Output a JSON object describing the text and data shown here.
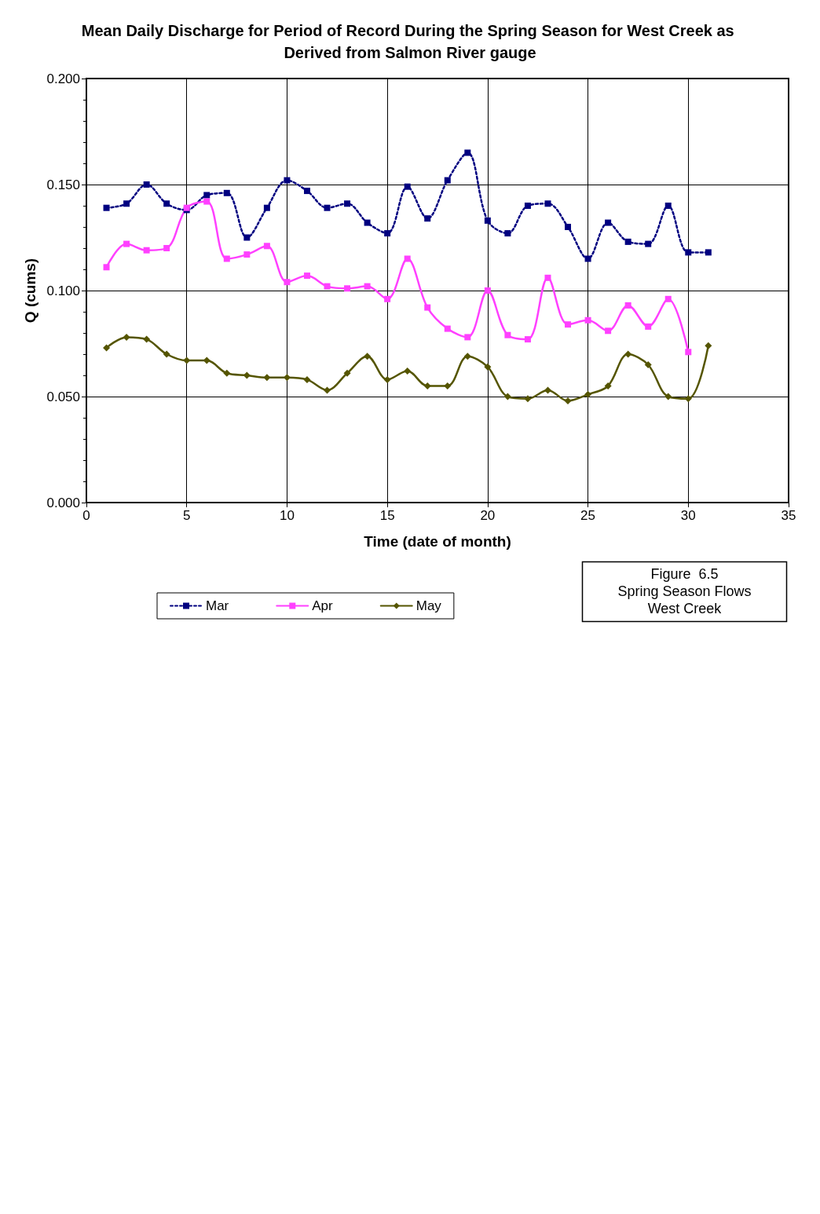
{
  "chart_data": {
    "type": "line",
    "title": "Mean Daily Discharge for Period of Record During the Spring Season for West Creek as Derived from Salmon River gauge",
    "xlabel": "Time (date of month)",
    "ylabel": "Q (cums)",
    "annotations": [
      "Figure  6.5",
      "Spring Season Flows",
      "West Creek"
    ],
    "xlim": [
      0,
      35
    ],
    "xticks": [
      0,
      5,
      10,
      15,
      20,
      25,
      30,
      35
    ],
    "ylim": [
      0,
      0.2
    ],
    "yticks": [
      {
        "value": 0,
        "label": "0.000"
      },
      {
        "value": 0.05,
        "label": "0.050"
      },
      {
        "value": 0.1,
        "label": "0.100"
      },
      {
        "value": 0.15,
        "label": "0.150"
      },
      {
        "value": 0.2,
        "label": "0.200"
      }
    ],
    "grid": true,
    "legend": "bottom",
    "series": [
      {
        "name": "Mar",
        "color": "#000080",
        "marker": "square",
        "line_style": "dotted",
        "x": [
          1,
          2,
          3,
          4,
          5,
          6,
          7,
          8,
          9,
          10,
          11,
          12,
          13,
          14,
          15,
          16,
          17,
          18,
          19,
          20,
          21,
          22,
          23,
          24,
          25,
          26,
          27,
          28,
          29,
          30,
          31
        ],
        "values": [
          0.139,
          0.141,
          0.15,
          0.141,
          0.138,
          0.145,
          0.146,
          0.125,
          0.139,
          0.152,
          0.147,
          0.139,
          0.141,
          0.132,
          0.127,
          0.149,
          0.134,
          0.152,
          0.165,
          0.133,
          0.127,
          0.14,
          0.141,
          0.13,
          0.115,
          0.132,
          0.123,
          0.122,
          0.14,
          0.118,
          0.118
        ]
      },
      {
        "name": "Apr",
        "color": "#ff40ff",
        "marker": "square",
        "line_style": "solid",
        "x": [
          1,
          2,
          3,
          4,
          5,
          6,
          7,
          8,
          9,
          10,
          11,
          12,
          13,
          14,
          15,
          16,
          17,
          18,
          19,
          20,
          21,
          22,
          23,
          24,
          25,
          26,
          27,
          28,
          29,
          30
        ],
        "values": [
          0.111,
          0.122,
          0.119,
          0.12,
          0.139,
          0.142,
          0.115,
          0.117,
          0.121,
          0.104,
          0.107,
          0.102,
          0.101,
          0.102,
          0.096,
          0.115,
          0.092,
          0.082,
          0.078,
          0.1,
          0.079,
          0.077,
          0.106,
          0.084,
          0.086,
          0.081,
          0.093,
          0.083,
          0.096,
          0.071
        ]
      },
      {
        "name": "May",
        "color": "#555500",
        "marker": "diamond",
        "line_style": "solid",
        "x": [
          1,
          2,
          3,
          4,
          5,
          6,
          7,
          8,
          9,
          10,
          11,
          12,
          13,
          14,
          15,
          16,
          17,
          18,
          19,
          20,
          21,
          22,
          23,
          24,
          25,
          26,
          27,
          28,
          29,
          30,
          31
        ],
        "values": [
          0.073,
          0.078,
          0.077,
          0.07,
          0.067,
          0.067,
          0.061,
          0.06,
          0.059,
          0.059,
          0.058,
          0.053,
          0.061,
          0.069,
          0.058,
          0.062,
          0.055,
          0.055,
          0.069,
          0.064,
          0.05,
          0.049,
          0.053,
          0.048,
          0.051,
          0.055,
          0.07,
          0.065,
          0.05,
          0.049,
          0.074
        ]
      }
    ]
  }
}
